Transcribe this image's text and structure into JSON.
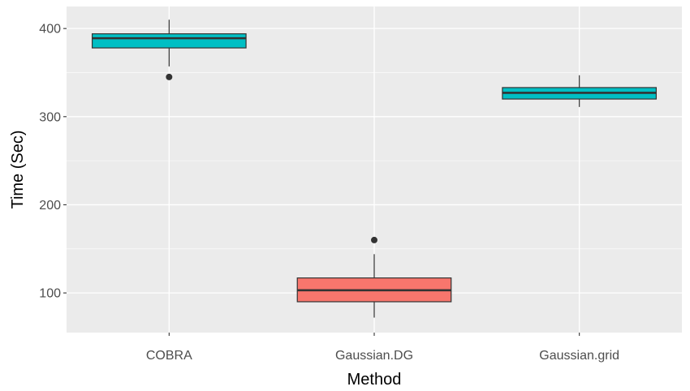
{
  "chart_data": {
    "type": "boxplot",
    "title": "",
    "xlabel": "Method",
    "ylabel": "Time (Sec)",
    "ylim": [
      55,
      425
    ],
    "yticks": [
      100,
      200,
      300,
      400
    ],
    "grid": true,
    "legend": "none",
    "categories": [
      "COBRA",
      "Gaussian.DG",
      "Gaussian.grid"
    ],
    "boxes": [
      {
        "category": "COBRA",
        "whisker_low": 357,
        "q1": 378,
        "median": 389,
        "q3": 394,
        "whisker_high": 410,
        "outliers": [
          345
        ],
        "fill": "#00bfc4"
      },
      {
        "category": "Gaussian.DG",
        "whisker_low": 72,
        "q1": 90,
        "median": 103,
        "q3": 117,
        "whisker_high": 144,
        "outliers": [
          160
        ],
        "fill": "#f8766d"
      },
      {
        "category": "Gaussian.grid",
        "whisker_low": 311,
        "q1": 320,
        "median": 327,
        "q3": 333,
        "whisker_high": 347,
        "outliers": [],
        "fill": "#00bfc4"
      }
    ]
  }
}
